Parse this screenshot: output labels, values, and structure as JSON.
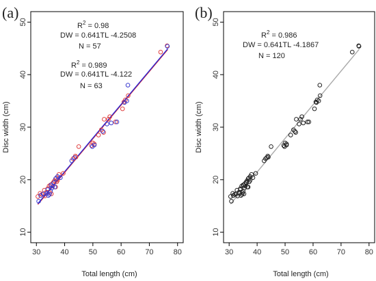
{
  "chart_data": [
    {
      "type": "scatter",
      "panel_label": "(a)",
      "xlabel": "Total length (cm)",
      "ylabel": "Disc width (cm)",
      "xlim": [
        28,
        82
      ],
      "ylim": [
        8,
        52
      ],
      "xticks": [
        30,
        40,
        50,
        60,
        70,
        80
      ],
      "yticks": [
        10,
        20,
        30,
        40,
        50
      ],
      "grid": false,
      "series": [
        {
          "color": "#e04040",
          "marker": "open-circle",
          "points": [
            [
              30.5,
              16.8
            ],
            [
              31.3,
              17.4
            ],
            [
              32.0,
              17.2
            ],
            [
              32.8,
              18.0
            ],
            [
              33.5,
              17.6
            ],
            [
              34.0,
              18.3
            ],
            [
              34.5,
              18.8
            ],
            [
              35.0,
              19.0
            ],
            [
              35.3,
              17.3
            ],
            [
              35.6,
              19.2
            ],
            [
              36.0,
              19.5
            ],
            [
              36.4,
              19.8
            ],
            [
              37.0,
              20.3
            ],
            [
              37.5,
              19.9
            ],
            [
              38.0,
              21.0
            ],
            [
              39.5,
              21.2
            ],
            [
              43.0,
              24.0
            ],
            [
              44.0,
              24.3
            ],
            [
              45.0,
              26.3
            ],
            [
              49.5,
              26.5
            ],
            [
              50.0,
              27.0
            ],
            [
              52.0,
              28.5
            ],
            [
              53.0,
              29.5
            ],
            [
              54.0,
              31.5
            ],
            [
              55.5,
              31.5
            ],
            [
              56.0,
              32.0
            ],
            [
              58.0,
              31.0
            ],
            [
              60.5,
              33.5
            ],
            [
              61.5,
              35.2
            ],
            [
              62.5,
              36.0
            ],
            [
              74.0,
              44.3
            ],
            [
              76.3,
              45.5
            ],
            [
              37.2,
              19.6
            ],
            [
              34.8,
              17.5
            ],
            [
              33.0,
              16.9
            ],
            [
              36.8,
              18.6
            ],
            [
              43.8,
              24.5
            ],
            [
              50.5,
              26.8
            ],
            [
              53.8,
              29.0
            ],
            [
              61.0,
              34.8
            ]
          ]
        },
        {
          "color": "#3a3ad0",
          "marker": "open-circle",
          "points": [
            [
              30.8,
              15.9
            ],
            [
              31.5,
              17.0
            ],
            [
              32.4,
              17.3
            ],
            [
              33.8,
              17.4
            ],
            [
              34.2,
              17.0
            ],
            [
              34.6,
              17.2
            ],
            [
              35.0,
              17.8
            ],
            [
              35.4,
              18.4
            ],
            [
              35.8,
              18.8
            ],
            [
              36.2,
              19.4
            ],
            [
              36.8,
              20.2
            ],
            [
              37.5,
              20.6
            ],
            [
              38.5,
              20.4
            ],
            [
              42.5,
              23.6
            ],
            [
              43.5,
              24.2
            ],
            [
              49.8,
              26.3
            ],
            [
              50.5,
              26.6
            ],
            [
              53.5,
              29.2
            ],
            [
              55.0,
              30.6
            ],
            [
              56.5,
              30.8
            ],
            [
              58.5,
              31.0
            ],
            [
              61.2,
              34.7
            ],
            [
              62.0,
              35.0
            ],
            [
              62.4,
              38.0
            ],
            [
              76.4,
              45.4
            ],
            [
              35.2,
              19.0
            ],
            [
              34.0,
              18.1
            ],
            [
              36.5,
              18.6
            ]
          ]
        }
      ],
      "fits": [
        {
          "color": "#e02020",
          "x_range": [
            30.5,
            76.5
          ],
          "slope": 0.641,
          "intercept": -4.2508
        },
        {
          "color": "#2a2ad8",
          "x_range": [
            30.5,
            76.5
          ],
          "slope": 0.641,
          "intercept": -4.122
        }
      ],
      "annotations": [
        {
          "r2_prefix": "R",
          "r2_sup": "2",
          "r2_value": " = 0.98",
          "equation": "DW = 0.641TL -4.2508",
          "n": "N = 57"
        },
        {
          "r2_prefix": "R",
          "r2_sup": "2",
          "r2_value": " = 0.989",
          "equation": "DW = 0.641TL -4.122",
          "n": "N = 63"
        }
      ]
    },
    {
      "type": "scatter",
      "panel_label": "(b)",
      "xlabel": "Total length (cm)",
      "ylabel": "Disc width (cm)",
      "xlim": [
        28,
        82
      ],
      "ylim": [
        8,
        52
      ],
      "xticks": [
        30,
        40,
        50,
        60,
        70,
        80
      ],
      "yticks": [
        10,
        20,
        30,
        40,
        50
      ],
      "grid": false,
      "series": [
        {
          "color": "#222222",
          "marker": "open-circle",
          "points": [
            [
              30.5,
              16.8
            ],
            [
              31.3,
              17.4
            ],
            [
              32.0,
              17.2
            ],
            [
              32.8,
              18.0
            ],
            [
              33.5,
              17.6
            ],
            [
              34.0,
              18.3
            ],
            [
              34.5,
              18.8
            ],
            [
              35.0,
              19.0
            ],
            [
              35.3,
              17.3
            ],
            [
              35.6,
              19.2
            ],
            [
              36.0,
              19.5
            ],
            [
              36.4,
              19.8
            ],
            [
              37.0,
              20.3
            ],
            [
              37.5,
              19.9
            ],
            [
              38.0,
              21.0
            ],
            [
              39.5,
              21.2
            ],
            [
              43.0,
              24.0
            ],
            [
              44.0,
              24.3
            ],
            [
              45.0,
              26.3
            ],
            [
              49.5,
              26.5
            ],
            [
              50.0,
              27.0
            ],
            [
              52.0,
              28.5
            ],
            [
              53.0,
              29.5
            ],
            [
              54.0,
              31.5
            ],
            [
              55.5,
              31.5
            ],
            [
              56.0,
              32.0
            ],
            [
              58.0,
              31.0
            ],
            [
              60.5,
              33.5
            ],
            [
              61.5,
              35.2
            ],
            [
              62.5,
              36.0
            ],
            [
              74.0,
              44.3
            ],
            [
              76.3,
              45.5
            ],
            [
              37.2,
              19.6
            ],
            [
              34.8,
              17.5
            ],
            [
              33.0,
              16.9
            ],
            [
              36.8,
              18.6
            ],
            [
              43.8,
              24.5
            ],
            [
              50.5,
              26.8
            ],
            [
              53.8,
              29.0
            ],
            [
              61.0,
              34.8
            ],
            [
              30.8,
              15.9
            ],
            [
              31.5,
              17.0
            ],
            [
              32.4,
              17.3
            ],
            [
              33.8,
              17.4
            ],
            [
              34.2,
              17.0
            ],
            [
              34.6,
              17.2
            ],
            [
              35.0,
              17.8
            ],
            [
              35.4,
              18.4
            ],
            [
              35.8,
              18.8
            ],
            [
              36.2,
              19.4
            ],
            [
              36.8,
              20.2
            ],
            [
              37.5,
              20.6
            ],
            [
              38.5,
              20.4
            ],
            [
              42.5,
              23.6
            ],
            [
              43.5,
              24.2
            ],
            [
              49.8,
              26.3
            ],
            [
              50.5,
              26.6
            ],
            [
              53.5,
              29.2
            ],
            [
              55.0,
              30.6
            ],
            [
              56.5,
              30.8
            ],
            [
              58.5,
              31.0
            ],
            [
              61.2,
              34.7
            ],
            [
              62.0,
              35.0
            ],
            [
              62.4,
              38.0
            ],
            [
              76.4,
              45.4
            ],
            [
              35.2,
              19.0
            ],
            [
              34.0,
              18.1
            ],
            [
              36.5,
              18.6
            ]
          ]
        }
      ],
      "fits": [
        {
          "color": "#aaaaaa",
          "x_range": [
            30.5,
            76.5
          ],
          "slope": 0.641,
          "intercept": -4.1867
        }
      ],
      "annotations": [
        {
          "r2_prefix": "R",
          "r2_sup": "2",
          "r2_value": " = 0.986",
          "equation": "DW = 0.641TL -4.1867",
          "n": "N = 120"
        }
      ]
    }
  ]
}
